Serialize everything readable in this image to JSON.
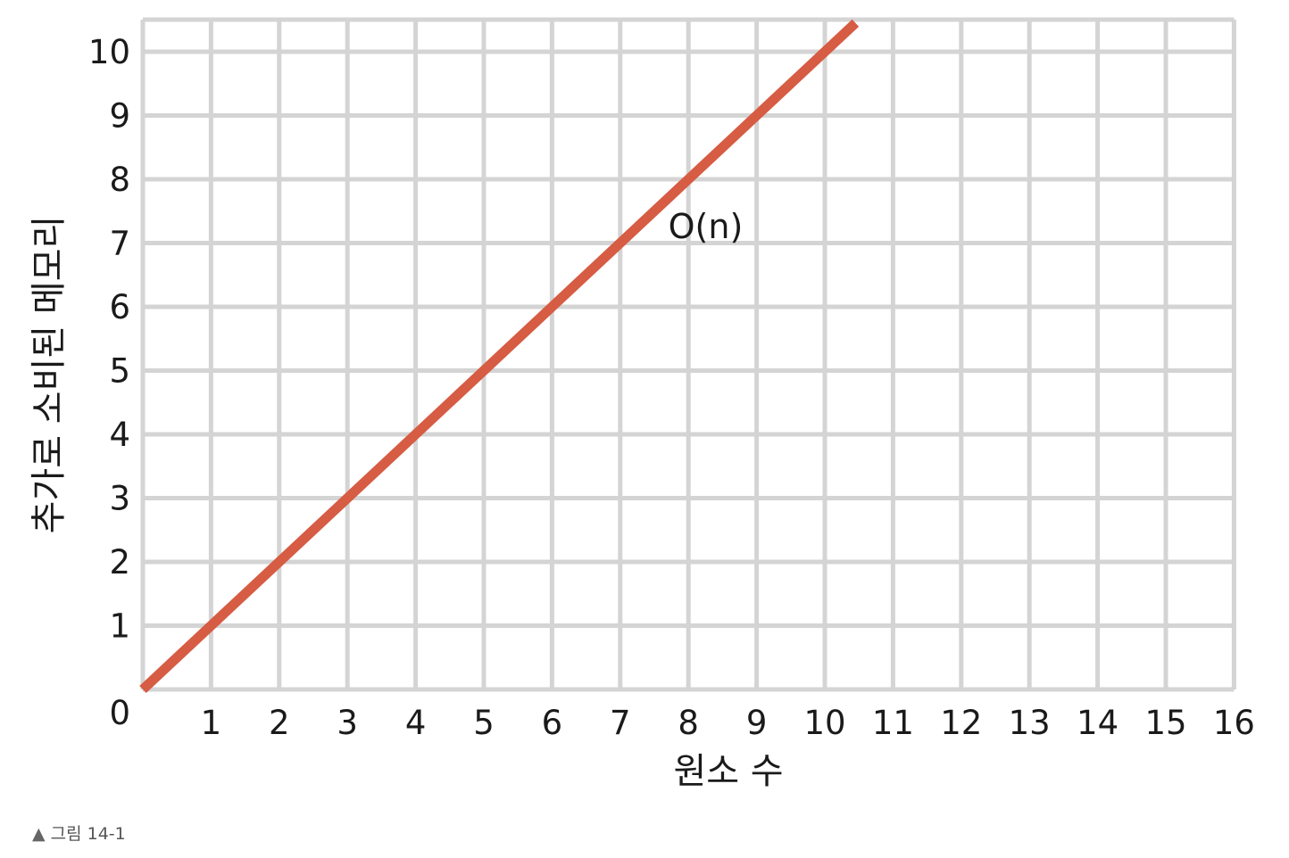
{
  "chart_data": {
    "type": "line",
    "xlabel": "원소 수",
    "ylabel": "추가로 소비된 메모리",
    "xlim": [
      0,
      16
    ],
    "ylim": [
      0,
      10.5
    ],
    "x_ticks": [
      "1",
      "2",
      "3",
      "4",
      "5",
      "6",
      "7",
      "8",
      "9",
      "10",
      "11",
      "12",
      "13",
      "14",
      "15",
      "16"
    ],
    "y_ticks": [
      "0",
      "1",
      "2",
      "3",
      "4",
      "5",
      "6",
      "7",
      "8",
      "9",
      "10"
    ],
    "grid": true,
    "series": [
      {
        "name": "O(n)",
        "color": "#d65c44",
        "x": [
          0,
          10.45
        ],
        "y": [
          0,
          10.45
        ]
      }
    ],
    "annotations": [
      {
        "text": "O(n)",
        "x": 7.6,
        "y": 7.3
      }
    ]
  },
  "caption": {
    "marker": "▲",
    "text": "그림 14-1"
  },
  "colors": {
    "grid": "#d4d4d4",
    "line": "#d65c44"
  }
}
